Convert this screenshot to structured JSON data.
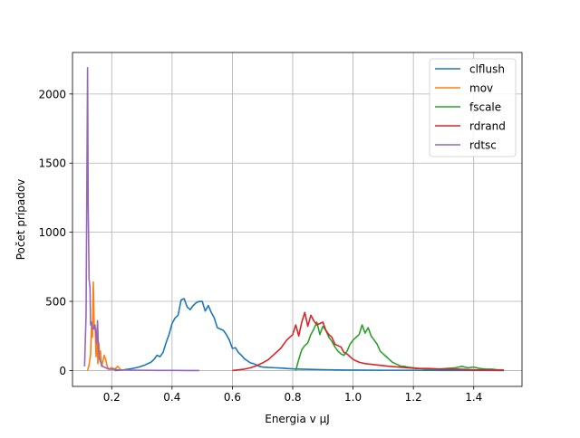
{
  "chart_data": {
    "type": "line",
    "title": "",
    "xlabel": "Energia v μJ",
    "ylabel": "Počet prípadov",
    "xlim": [
      0.07,
      1.56
    ],
    "ylim": [
      -115,
      2300
    ],
    "grid": true,
    "legend_position": "top-right",
    "xticks": [
      0.2,
      0.4,
      0.6,
      0.8,
      1.0,
      1.2,
      1.4
    ],
    "xtick_labels": [
      "0.2",
      "0.4",
      "0.6",
      "0.8",
      "1.0",
      "1.2",
      "1.4"
    ],
    "yticks": [
      0,
      500,
      1000,
      1500,
      2000
    ],
    "ytick_labels": [
      "0",
      "500",
      "1000",
      "1500",
      "2000"
    ],
    "series": [
      {
        "name": "clflush",
        "color": "#1f77b4",
        "x": [
          0.21,
          0.24,
          0.27,
          0.29,
          0.31,
          0.33,
          0.34,
          0.35,
          0.36,
          0.37,
          0.38,
          0.39,
          0.4,
          0.41,
          0.42,
          0.43,
          0.44,
          0.45,
          0.46,
          0.47,
          0.48,
          0.49,
          0.5,
          0.51,
          0.52,
          0.53,
          0.54,
          0.55,
          0.56,
          0.57,
          0.58,
          0.59,
          0.6,
          0.61,
          0.62,
          0.63,
          0.64,
          0.65,
          0.66,
          0.67,
          0.68,
          0.69,
          0.7,
          0.72,
          0.74,
          0.76,
          0.78,
          0.8,
          0.83,
          0.86,
          0.9,
          0.95,
          1.0,
          1.1,
          1.2,
          1.3,
          1.4,
          1.5
        ],
        "y": [
          0,
          5,
          15,
          25,
          40,
          60,
          80,
          110,
          100,
          130,
          200,
          260,
          340,
          380,
          400,
          510,
          520,
          460,
          440,
          470,
          490,
          500,
          500,
          430,
          470,
          420,
          380,
          310,
          300,
          290,
          260,
          220,
          160,
          165,
          130,
          110,
          85,
          70,
          55,
          50,
          40,
          30,
          25,
          22,
          20,
          18,
          15,
          12,
          10,
          8,
          6,
          4,
          3,
          2,
          2,
          1,
          1,
          0
        ]
      },
      {
        "name": "mov",
        "color": "#ff7f0e",
        "x": [
          0.12,
          0.125,
          0.13,
          0.133,
          0.136,
          0.139,
          0.142,
          0.145,
          0.148,
          0.151,
          0.154,
          0.157,
          0.16,
          0.163,
          0.166,
          0.17,
          0.175,
          0.18,
          0.185,
          0.19,
          0.2,
          0.21,
          0.22,
          0.23,
          0.24
        ],
        "y": [
          0,
          40,
          120,
          330,
          240,
          640,
          300,
          330,
          100,
          300,
          50,
          200,
          120,
          140,
          30,
          60,
          110,
          80,
          30,
          10,
          20,
          10,
          30,
          5,
          0
        ]
      },
      {
        "name": "fscale",
        "color": "#2ca02c",
        "x": [
          0.81,
          0.82,
          0.83,
          0.84,
          0.85,
          0.86,
          0.87,
          0.88,
          0.89,
          0.9,
          0.91,
          0.92,
          0.93,
          0.94,
          0.95,
          0.96,
          0.97,
          0.98,
          0.99,
          1.0,
          1.01,
          1.02,
          1.03,
          1.04,
          1.05,
          1.06,
          1.07,
          1.08,
          1.09,
          1.1,
          1.11,
          1.12,
          1.13,
          1.14,
          1.15,
          1.16,
          1.17,
          1.18,
          1.2,
          1.22,
          1.25,
          1.28,
          1.31,
          1.34,
          1.36,
          1.38,
          1.4,
          1.42,
          1.44,
          1.46,
          1.48,
          1.5
        ],
        "y": [
          0,
          80,
          150,
          180,
          200,
          260,
          300,
          350,
          260,
          320,
          290,
          240,
          210,
          170,
          140,
          120,
          110,
          140,
          190,
          220,
          240,
          260,
          330,
          270,
          310,
          250,
          220,
          190,
          140,
          120,
          100,
          80,
          60,
          50,
          40,
          30,
          30,
          25,
          20,
          15,
          10,
          10,
          15,
          20,
          30,
          20,
          25,
          15,
          10,
          10,
          5,
          5
        ]
      },
      {
        "name": "rdrand",
        "color": "#d62728",
        "x": [
          0.6,
          0.62,
          0.64,
          0.66,
          0.68,
          0.7,
          0.72,
          0.74,
          0.76,
          0.78,
          0.8,
          0.81,
          0.82,
          0.83,
          0.84,
          0.85,
          0.86,
          0.87,
          0.88,
          0.89,
          0.9,
          0.91,
          0.92,
          0.93,
          0.94,
          0.95,
          0.96,
          0.97,
          0.98,
          0.99,
          1.0,
          1.02,
          1.04,
          1.06,
          1.08,
          1.1,
          1.12,
          1.15,
          1.18,
          1.21,
          1.25,
          1.3,
          1.35,
          1.4,
          1.45,
          1.5
        ],
        "y": [
          0,
          5,
          10,
          20,
          35,
          55,
          80,
          120,
          160,
          220,
          260,
          330,
          250,
          350,
          420,
          320,
          400,
          360,
          330,
          340,
          350,
          290,
          260,
          240,
          190,
          180,
          170,
          130,
          120,
          100,
          80,
          60,
          50,
          45,
          40,
          35,
          30,
          25,
          20,
          15,
          15,
          10,
          10,
          5,
          5,
          2
        ]
      },
      {
        "name": "rdtsc",
        "color": "#9467bd",
        "x": [
          0.11,
          0.115,
          0.118,
          0.12,
          0.122,
          0.125,
          0.128,
          0.13,
          0.133,
          0.136,
          0.14,
          0.143,
          0.146,
          0.15,
          0.153,
          0.156,
          0.16,
          0.165,
          0.17,
          0.18,
          0.19,
          0.2,
          0.22,
          0.25,
          0.3,
          0.35,
          0.4,
          0.45,
          0.49
        ],
        "y": [
          30,
          400,
          1500,
          2190,
          1200,
          660,
          600,
          330,
          350,
          300,
          300,
          330,
          300,
          200,
          360,
          150,
          80,
          50,
          30,
          20,
          10,
          10,
          5,
          3,
          2,
          1,
          1,
          0,
          0
        ]
      }
    ]
  }
}
